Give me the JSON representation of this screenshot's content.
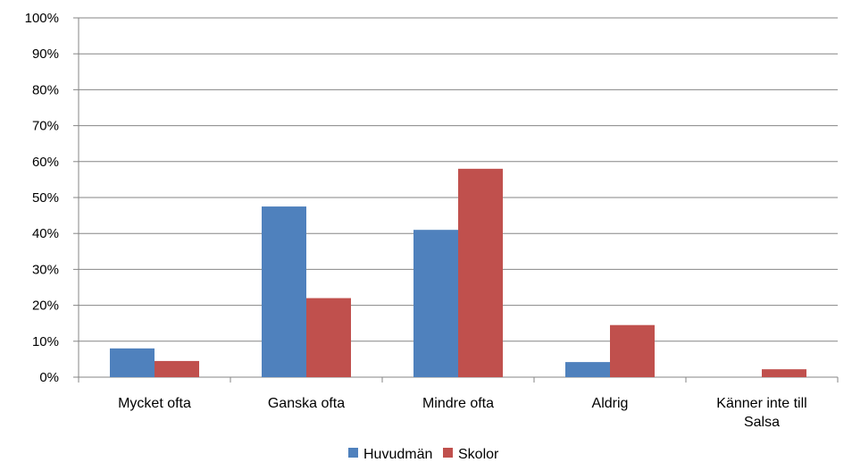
{
  "chart_data": {
    "type": "bar",
    "title": "",
    "xlabel": "",
    "ylabel": "",
    "ylim": [
      0,
      100
    ],
    "yticks": [
      "0%",
      "10%",
      "20%",
      "30%",
      "40%",
      "50%",
      "60%",
      "70%",
      "80%",
      "90%",
      "100%"
    ],
    "grid": true,
    "legend_position": "bottom",
    "categories": [
      [
        "Mycket ofta"
      ],
      [
        "Ganska ofta"
      ],
      [
        "Mindre ofta"
      ],
      [
        "Aldrig"
      ],
      [
        "Känner inte till",
        "Salsa"
      ]
    ],
    "series": [
      {
        "name": "Huvudmän",
        "color": "#4F81BD",
        "values": [
          8,
          47.5,
          41,
          4.2,
          0
        ]
      },
      {
        "name": "Skolor",
        "color": "#C0504D",
        "values": [
          4.5,
          22,
          58,
          14.5,
          2.2
        ]
      }
    ]
  }
}
